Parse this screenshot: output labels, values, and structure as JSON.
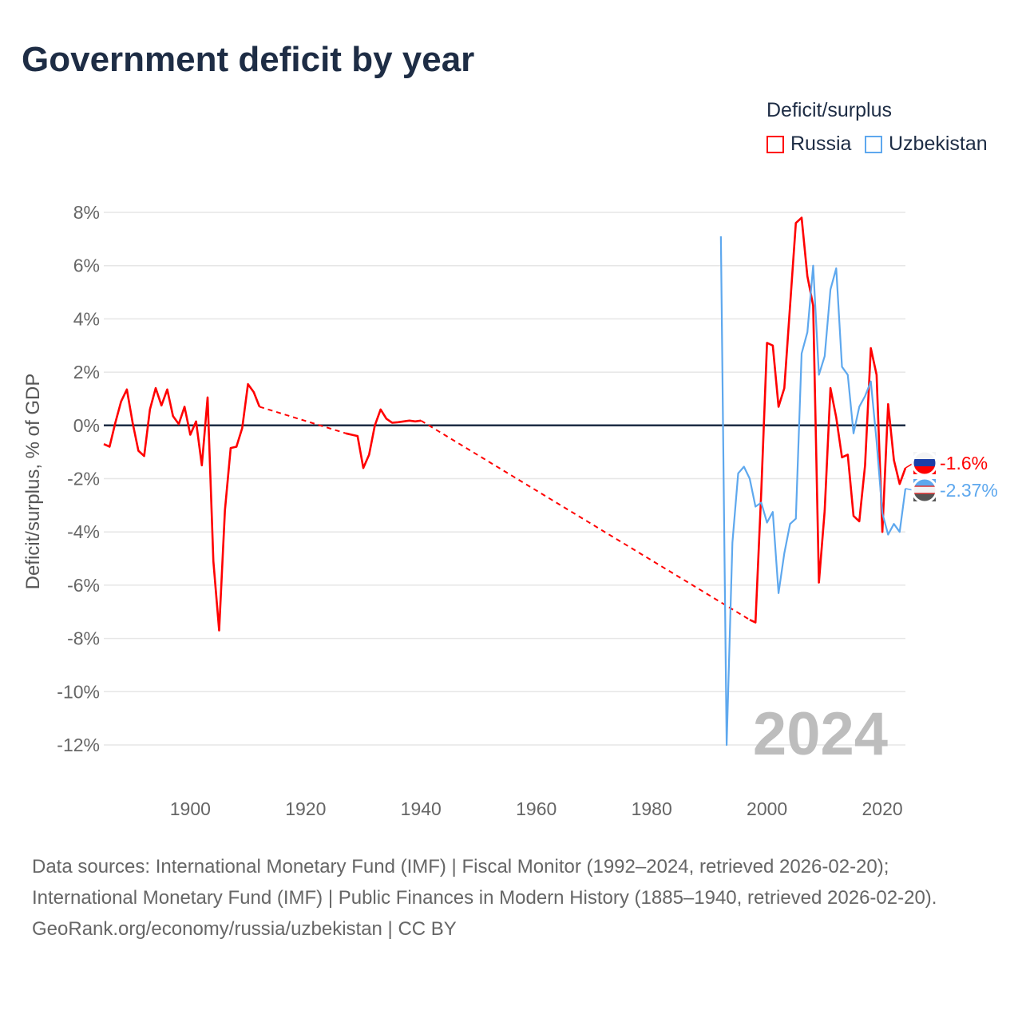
{
  "title": "Government deficit by year",
  "legend": {
    "title": "Deficit/surplus",
    "items": [
      "Russia",
      "Uzbekistan"
    ]
  },
  "colors": {
    "Russia": "#ff0000",
    "Uzbekistan": "#5ea8ee"
  },
  "footer": {
    "sources": "Data sources: International Monetary Fund (IMF) | Fiscal Monitor (1992–2024, retrieved 2026-02-20); International Monetary Fund (IMF) | Public Finances in Modern History (1885–1940, retrieved 2026-02-20).",
    "link": "GeoRank.org/economy/russia/uzbekistan | CC BY"
  },
  "chart_data": {
    "type": "line",
    "title": "Government deficit by year",
    "ylabel": "Deficit/surplus, % of GDP",
    "xlabel": "",
    "xlim": [
      1885,
      2024
    ],
    "ylim": [
      -12,
      8
    ],
    "xticks": [
      1900,
      1920,
      1940,
      1960,
      1980,
      2000,
      2020
    ],
    "xtick_labels": [
      "1900",
      "1920",
      "1940",
      "1960",
      "1980",
      "2000",
      "2020"
    ],
    "yticks": [
      8,
      6,
      4,
      2,
      0,
      -2,
      -4,
      -6,
      -8,
      -10,
      -12
    ],
    "ytick_labels": [
      "8%",
      "6%",
      "4%",
      "2%",
      "0%",
      "-2%",
      "-4%",
      "-6%",
      "-8%",
      "-10%",
      "-12%"
    ],
    "year_label": "2024",
    "series": [
      {
        "name": "Russia",
        "end_label": "-1.6%",
        "points": [
          [
            1885,
            -0.7
          ],
          [
            1886,
            -0.8
          ],
          [
            1887,
            0.1
          ],
          [
            1888,
            0.9
          ],
          [
            1889,
            1.35
          ],
          [
            1890,
            0.1
          ],
          [
            1891,
            -0.95
          ],
          [
            1892,
            -1.15
          ],
          [
            1893,
            0.6
          ],
          [
            1894,
            1.4
          ],
          [
            1895,
            0.75
          ],
          [
            1896,
            1.35
          ],
          [
            1897,
            0.35
          ],
          [
            1898,
            0.05
          ],
          [
            1899,
            0.7
          ],
          [
            1900,
            -0.35
          ],
          [
            1901,
            0.15
          ],
          [
            1902,
            -1.5
          ],
          [
            1903,
            1.05
          ],
          [
            1904,
            -5.1
          ],
          [
            1905,
            -7.7
          ],
          [
            1906,
            -3.2
          ],
          [
            1907,
            -0.85
          ],
          [
            1908,
            -0.8
          ],
          [
            1909,
            -0.1
          ],
          [
            1910,
            1.55
          ],
          [
            1911,
            1.25
          ],
          [
            1912,
            0.7
          ],
          [
            1927,
            -0.3
          ],
          [
            1928,
            -0.35
          ],
          [
            1929,
            -0.4
          ],
          [
            1930,
            -1.6
          ],
          [
            1931,
            -1.1
          ],
          [
            1932,
            0
          ],
          [
            1933,
            0.6
          ],
          [
            1934,
            0.25
          ],
          [
            1935,
            0.1
          ],
          [
            1936,
            0.12
          ],
          [
            1937,
            0.15
          ],
          [
            1938,
            0.18
          ],
          [
            1939,
            0.15
          ],
          [
            1940,
            0.18
          ],
          [
            1997,
            -7.3
          ],
          [
            1998,
            -7.4
          ],
          [
            1999,
            -2.5
          ],
          [
            2000,
            3.1
          ],
          [
            2001,
            3.0
          ],
          [
            2002,
            0.7
          ],
          [
            2003,
            1.4
          ],
          [
            2004,
            4.5
          ],
          [
            2005,
            7.6
          ],
          [
            2006,
            7.8
          ],
          [
            2007,
            5.6
          ],
          [
            2008,
            4.5
          ],
          [
            2009,
            -5.9
          ],
          [
            2010,
            -3.2
          ],
          [
            2011,
            1.4
          ],
          [
            2012,
            0.3
          ],
          [
            2013,
            -1.2
          ],
          [
            2014,
            -1.1
          ],
          [
            2015,
            -3.4
          ],
          [
            2016,
            -3.6
          ],
          [
            2017,
            -1.5
          ],
          [
            2018,
            2.9
          ],
          [
            2019,
            1.9
          ],
          [
            2020,
            -4.0
          ],
          [
            2021,
            0.8
          ],
          [
            2022,
            -1.3
          ],
          [
            2023,
            -2.2
          ],
          [
            2024,
            -1.6
          ]
        ]
      },
      {
        "name": "Uzbekistan",
        "end_label": "-2.37%",
        "points": [
          [
            1992,
            7.1
          ],
          [
            1993,
            -12
          ],
          [
            1994,
            -4.4
          ],
          [
            1995,
            -1.8
          ],
          [
            1996,
            -1.55
          ],
          [
            1997,
            -2.0
          ],
          [
            1998,
            -3.05
          ],
          [
            1999,
            -2.9
          ],
          [
            2000,
            -3.65
          ],
          [
            2001,
            -3.25
          ],
          [
            2002,
            -6.3
          ],
          [
            2003,
            -4.8
          ],
          [
            2004,
            -3.7
          ],
          [
            2005,
            -3.5
          ],
          [
            2006,
            2.7
          ],
          [
            2007,
            3.5
          ],
          [
            2008,
            6.0
          ],
          [
            2009,
            1.9
          ],
          [
            2010,
            2.6
          ],
          [
            2011,
            5.1
          ],
          [
            2012,
            5.9
          ],
          [
            2013,
            2.2
          ],
          [
            2014,
            1.9
          ],
          [
            2015,
            -0.3
          ],
          [
            2016,
            0.7
          ],
          [
            2017,
            1.1
          ],
          [
            2018,
            1.65
          ],
          [
            2019,
            -0.6
          ],
          [
            2020,
            -3.3
          ],
          [
            2021,
            -4.1
          ],
          [
            2022,
            -3.7
          ],
          [
            2023,
            -4.0
          ],
          [
            2024,
            -2.37
          ]
        ]
      }
    ]
  }
}
